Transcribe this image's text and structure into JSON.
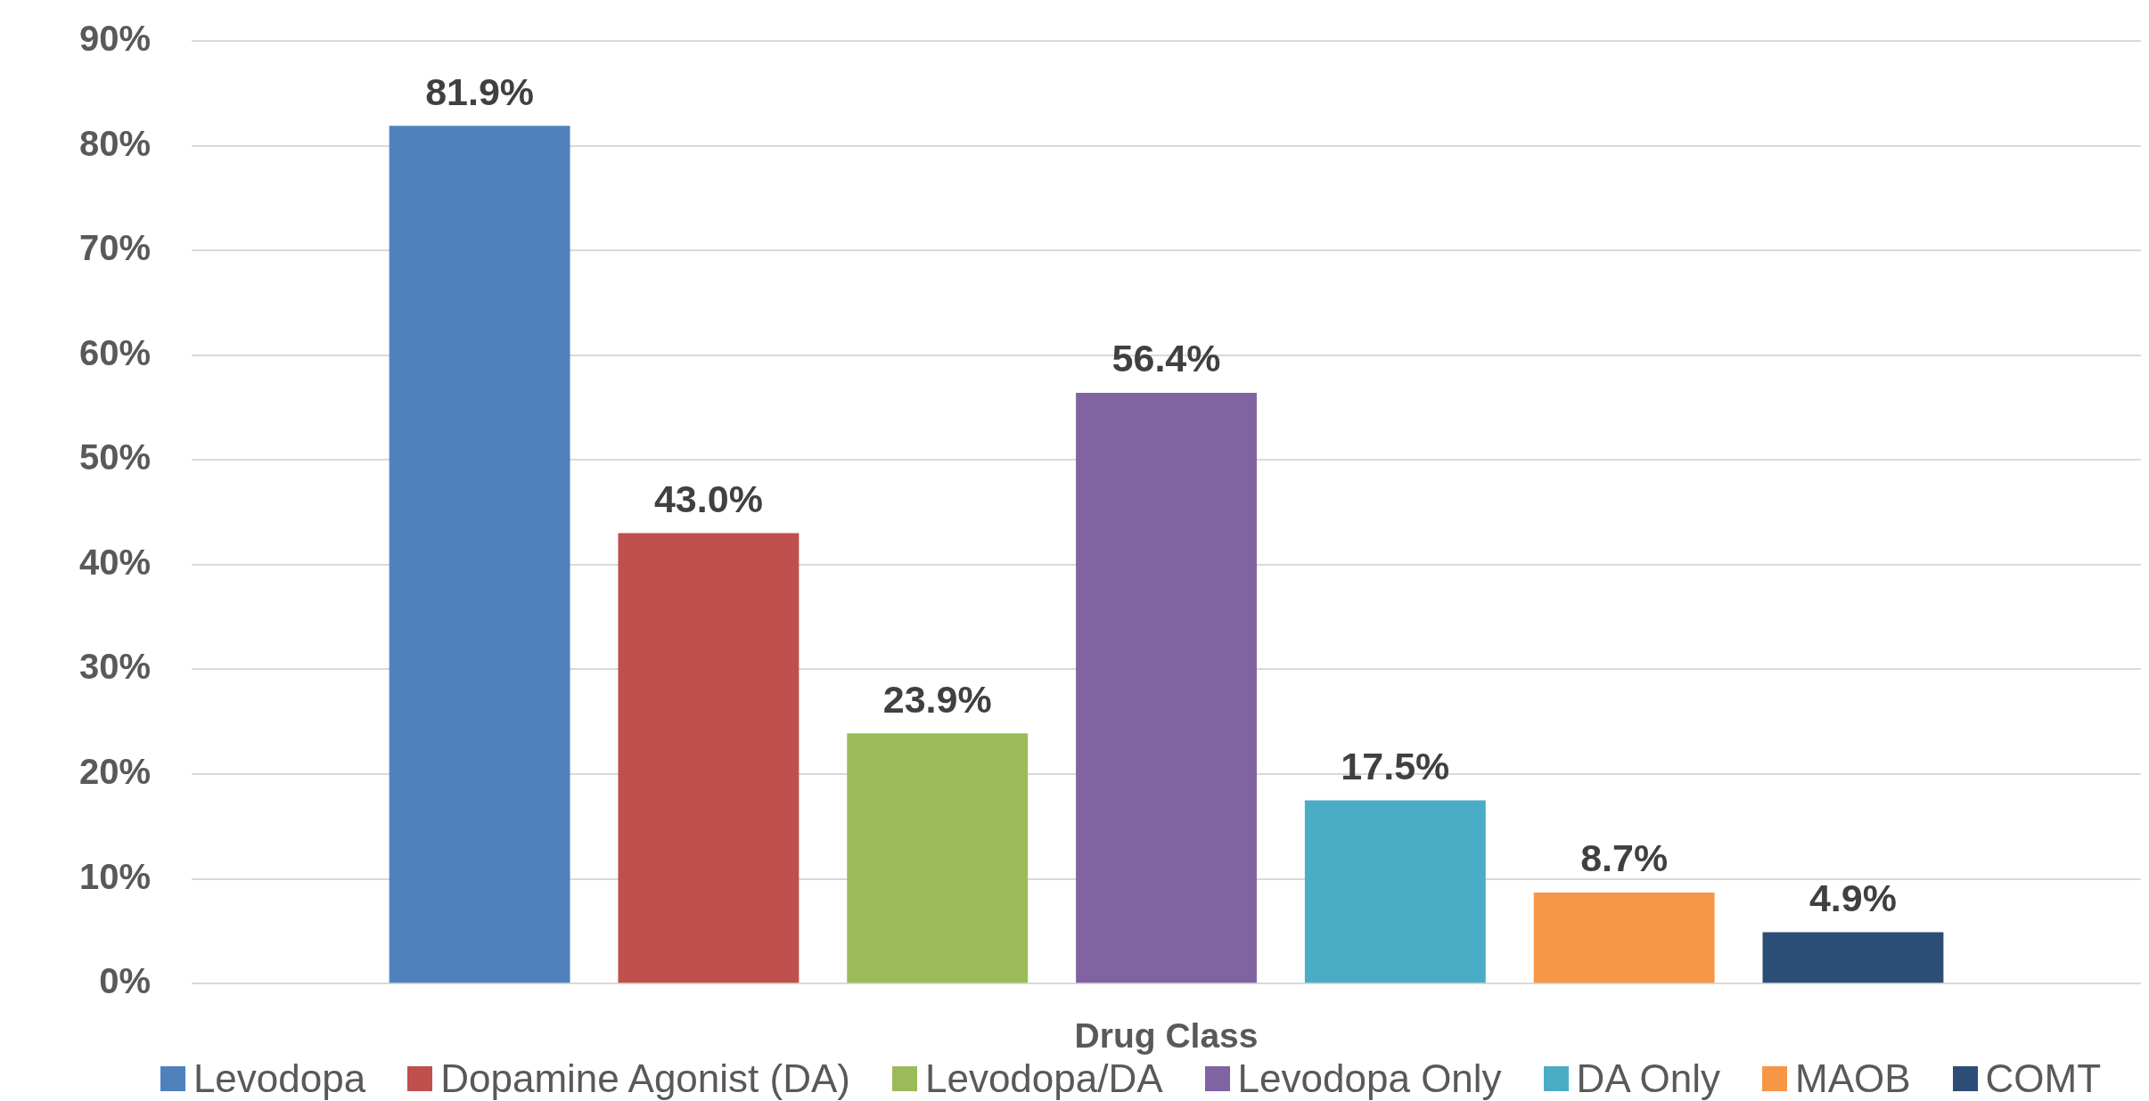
{
  "chart_data": {
    "type": "bar",
    "xlabel": "Drug Class",
    "categories": [
      null
    ],
    "series": [
      {
        "name": "Levodopa",
        "color": "#4f81bd",
        "values": [
          81.9
        ],
        "value_labels": [
          "81.9%"
        ]
      },
      {
        "name": "Dopamine Agonist (DA)",
        "color": "#c0504d",
        "values": [
          43.0
        ],
        "value_labels": [
          "43.0%"
        ]
      },
      {
        "name": "Levodopa/DA",
        "color": "#9bbb59",
        "values": [
          23.9
        ],
        "value_labels": [
          "23.9%"
        ]
      },
      {
        "name": "Levodopa Only",
        "color": "#8064a2",
        "values": [
          56.4
        ],
        "value_labels": [
          "56.4%"
        ]
      },
      {
        "name": "DA Only",
        "color": "#4bacc6",
        "values": [
          17.5
        ],
        "value_labels": [
          "17.5%"
        ]
      },
      {
        "name": "MAOB",
        "color": "#f79646",
        "values": [
          8.7
        ],
        "value_labels": [
          "8.7%"
        ]
      },
      {
        "name": "COMT",
        "color": "#2c4d75",
        "values": [
          4.9
        ],
        "value_labels": [
          "4.9%"
        ]
      }
    ],
    "ylim": [
      0,
      90
    ],
    "yticks": [
      {
        "value": 0,
        "label": "0%"
      },
      {
        "value": 10,
        "label": "10%"
      },
      {
        "value": 20,
        "label": "20%"
      },
      {
        "value": 30,
        "label": "30%"
      },
      {
        "value": 40,
        "label": "40%"
      },
      {
        "value": 50,
        "label": "50%"
      },
      {
        "value": 60,
        "label": "60%"
      },
      {
        "value": 70,
        "label": "70%"
      },
      {
        "value": 80,
        "label": "80%"
      },
      {
        "value": 90,
        "label": "90%"
      }
    ],
    "grid": "y",
    "legend": "bottom"
  }
}
